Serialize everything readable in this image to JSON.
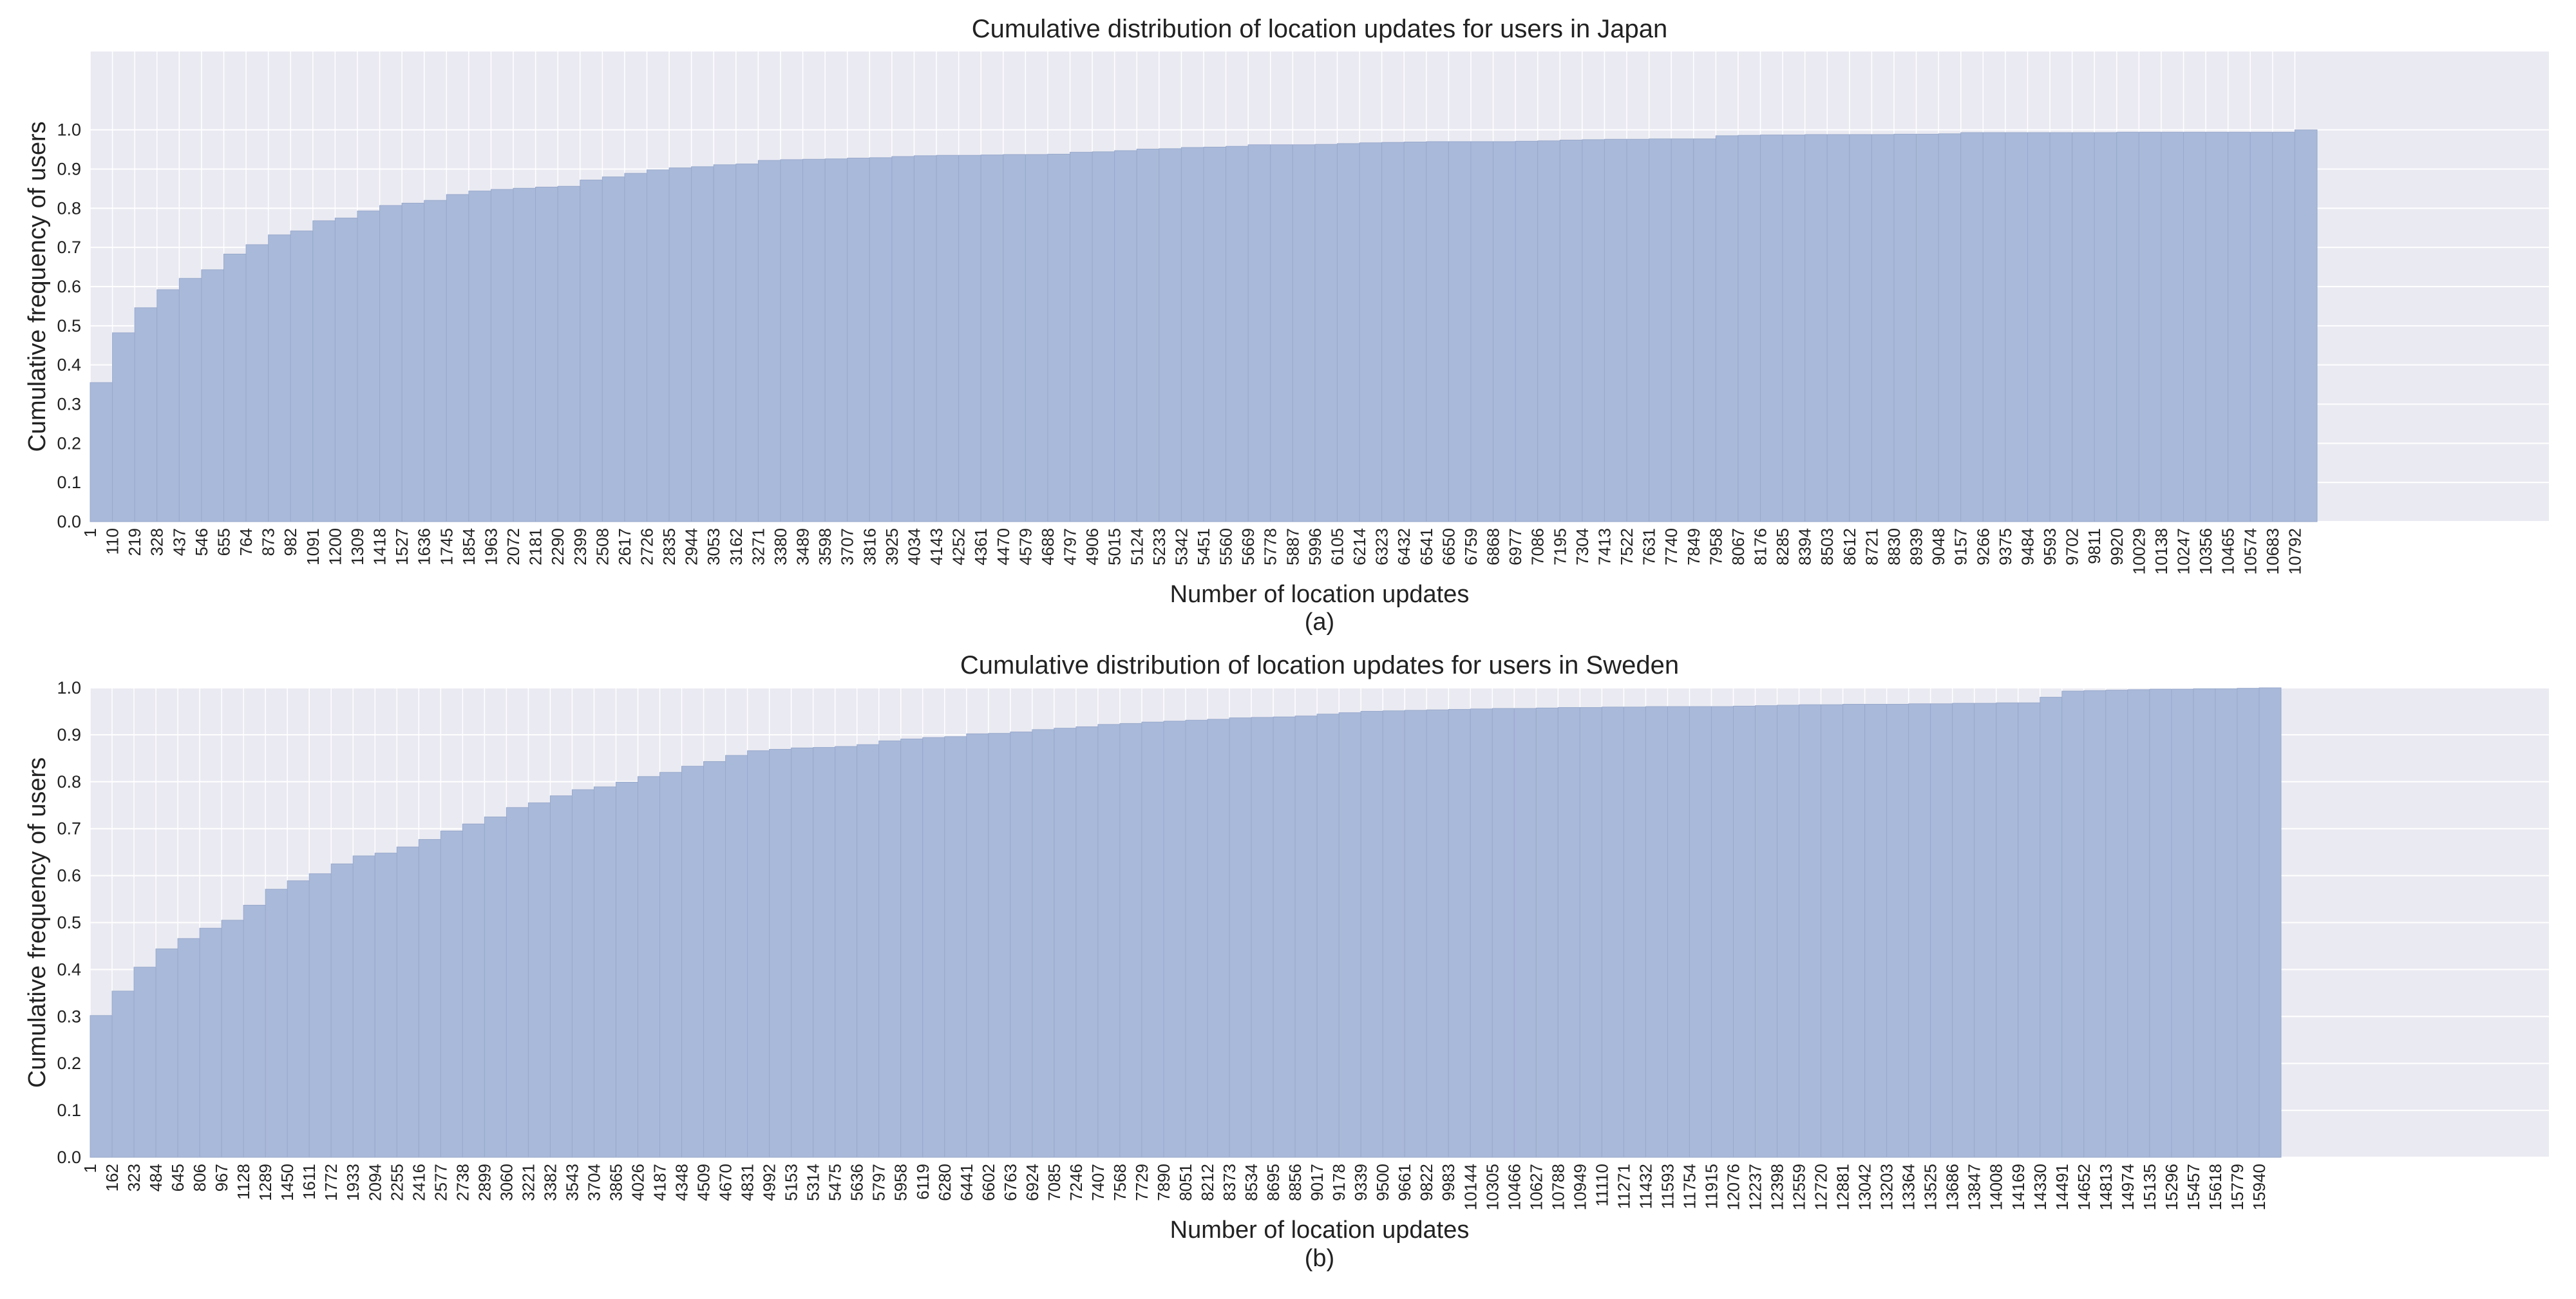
{
  "chart_data": [
    {
      "type": "bar",
      "title": "Cumulative distribution of location updates for users in Japan",
      "xlabel": "Number of location updates",
      "ylabel": "Cumulative frequency of users",
      "sublabel": "(a)",
      "ylim": [
        0,
        1.2
      ],
      "yticks": [
        "0.0",
        "0.1",
        "0.2",
        "0.3",
        "0.4",
        "0.5",
        "0.6",
        "0.7",
        "0.8",
        "0.9",
        "1.0"
      ],
      "grid": true,
      "bar_color": "#a9b9d9",
      "background_color": "#eaeaf2",
      "x_span": 11,
      "categories": [
        "1",
        "110",
        "219",
        "328",
        "437",
        "546",
        "655",
        "764",
        "873",
        "982",
        "1091",
        "1200",
        "1309",
        "1418",
        "1527",
        "1636",
        "1745",
        "1854",
        "1963",
        "2072",
        "2181",
        "2290",
        "2399",
        "2508",
        "2617",
        "2726",
        "2835",
        "2944",
        "3053",
        "3162",
        "3271",
        "3380",
        "3489",
        "3598",
        "3707",
        "3816",
        "3925",
        "4034",
        "4143",
        "4252",
        "4361",
        "4470",
        "4579",
        "4688",
        "4797",
        "4906",
        "5015",
        "5124",
        "5233",
        "5342",
        "5451",
        "5560",
        "5669",
        "5778",
        "5887",
        "5996",
        "6105",
        "6214",
        "6323",
        "6432",
        "6541",
        "6650",
        "6759",
        "6868",
        "6977",
        "7086",
        "7195",
        "7304",
        "7413",
        "7522",
        "7631",
        "7740",
        "7849",
        "7958",
        "8067",
        "8176",
        "8285",
        "8394",
        "8503",
        "8612",
        "8721",
        "8830",
        "8939",
        "9048",
        "9157",
        "9266",
        "9375",
        "9484",
        "9593",
        "9702",
        "9811",
        "9920",
        "10029",
        "10138",
        "10247",
        "10356",
        "10465",
        "10574",
        "10683",
        "10792"
      ],
      "values": [
        0.355,
        0.482,
        0.546,
        0.592,
        0.621,
        0.643,
        0.683,
        0.707,
        0.732,
        0.742,
        0.768,
        0.775,
        0.793,
        0.807,
        0.813,
        0.82,
        0.835,
        0.844,
        0.848,
        0.851,
        0.854,
        0.856,
        0.872,
        0.88,
        0.889,
        0.898,
        0.903,
        0.906,
        0.911,
        0.913,
        0.922,
        0.924,
        0.925,
        0.926,
        0.928,
        0.929,
        0.932,
        0.934,
        0.935,
        0.935,
        0.936,
        0.937,
        0.937,
        0.938,
        0.943,
        0.944,
        0.947,
        0.951,
        0.952,
        0.955,
        0.956,
        0.958,
        0.962,
        0.962,
        0.962,
        0.963,
        0.965,
        0.967,
        0.968,
        0.969,
        0.97,
        0.97,
        0.97,
        0.97,
        0.971,
        0.972,
        0.974,
        0.975,
        0.976,
        0.976,
        0.977,
        0.977,
        0.977,
        0.985,
        0.986,
        0.987,
        0.987,
        0.988,
        0.988,
        0.988,
        0.988,
        0.989,
        0.989,
        0.99,
        0.993,
        0.993,
        0.993,
        0.993,
        0.993,
        0.993,
        0.993,
        0.994,
        0.994,
        0.994,
        0.994,
        0.994,
        0.994,
        0.994,
        0.994,
        1.0
      ]
    },
    {
      "type": "bar",
      "title": "Cumulative distribution of location updates for users in Sweden",
      "xlabel": "Number of location updates",
      "ylabel": "Cumulative frequency of users",
      "sublabel": "(b)",
      "ylim": [
        0,
        1.0
      ],
      "yticks": [
        "0.0",
        "0.1",
        "0.2",
        "0.3",
        "0.4",
        "0.5",
        "0.6",
        "0.7",
        "0.8",
        "0.9",
        "1.0"
      ],
      "grid": true,
      "bar_color": "#a9b9d9",
      "background_color": "#eaeaf2",
      "x_span": 111,
      "categories": [
        "1",
        "162",
        "323",
        "484",
        "645",
        "806",
        "967",
        "1128",
        "1289",
        "1450",
        "1611",
        "1772",
        "1933",
        "2094",
        "2255",
        "2416",
        "2577",
        "2738",
        "2899",
        "3060",
        "3221",
        "3382",
        "3543",
        "3704",
        "3865",
        "4026",
        "4187",
        "4348",
        "4509",
        "4670",
        "4831",
        "4992",
        "5153",
        "5314",
        "5475",
        "5636",
        "5797",
        "5958",
        "6119",
        "6280",
        "6441",
        "6602",
        "6763",
        "6924",
        "7085",
        "7246",
        "7407",
        "7568",
        "7729",
        "7890",
        "8051",
        "8212",
        "8373",
        "8534",
        "8695",
        "8856",
        "9017",
        "9178",
        "9339",
        "9500",
        "9661",
        "9822",
        "9983",
        "10144",
        "10305",
        "10466",
        "10627",
        "10788",
        "10949",
        "11110",
        "11271",
        "11432",
        "11593",
        "11754",
        "11915",
        "12076",
        "12237",
        "12398",
        "12559",
        "12720",
        "12881",
        "13042",
        "13203",
        "13364",
        "13525",
        "13686",
        "13847",
        "14008",
        "14169",
        "14330",
        "14491",
        "14652",
        "14813",
        "14974",
        "15135",
        "15296",
        "15457",
        "15618",
        "15779",
        "15940"
      ],
      "values": [
        0.302,
        0.354,
        0.405,
        0.444,
        0.466,
        0.488,
        0.505,
        0.537,
        0.571,
        0.589,
        0.604,
        0.625,
        0.642,
        0.648,
        0.661,
        0.677,
        0.695,
        0.71,
        0.725,
        0.745,
        0.755,
        0.77,
        0.783,
        0.789,
        0.799,
        0.811,
        0.82,
        0.833,
        0.843,
        0.856,
        0.866,
        0.869,
        0.872,
        0.873,
        0.875,
        0.879,
        0.887,
        0.891,
        0.894,
        0.896,
        0.902,
        0.903,
        0.906,
        0.911,
        0.914,
        0.917,
        0.922,
        0.924,
        0.927,
        0.929,
        0.931,
        0.933,
        0.936,
        0.937,
        0.938,
        0.94,
        0.944,
        0.947,
        0.95,
        0.951,
        0.952,
        0.953,
        0.954,
        0.955,
        0.956,
        0.956,
        0.957,
        0.958,
        0.958,
        0.959,
        0.959,
        0.96,
        0.96,
        0.96,
        0.96,
        0.961,
        0.962,
        0.963,
        0.964,
        0.964,
        0.965,
        0.965,
        0.965,
        0.966,
        0.966,
        0.967,
        0.967,
        0.968,
        0.968,
        0.98,
        0.993,
        0.994,
        0.995,
        0.996,
        0.997,
        0.997,
        0.998,
        0.998,
        0.999,
        1.0
      ]
    }
  ]
}
